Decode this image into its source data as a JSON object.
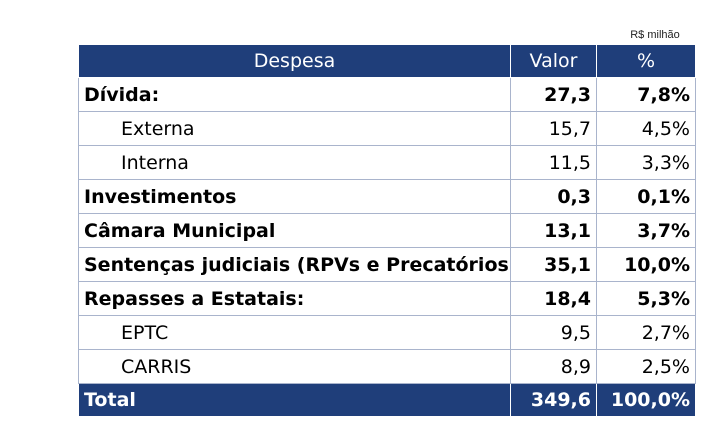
{
  "unit_label": "R$ milhão",
  "header": {
    "despesa": "Despesa",
    "valor": "Valor",
    "percent": "%"
  },
  "rows": [
    {
      "label": "Dívida:",
      "valor": "27,3",
      "percent": "7,8%"
    },
    {
      "label": "Externa",
      "valor": "15,7",
      "percent": "4,5%"
    },
    {
      "label": "Interna",
      "valor": "11,5",
      "percent": "3,3%"
    },
    {
      "label": "Investimentos",
      "valor": "0,3",
      "percent": "0,1%"
    },
    {
      "label": "Câmara Municipal",
      "valor": "13,1",
      "percent": "3,7%"
    },
    {
      "label": "Sentenças judiciais (RPVs e Precatórios)",
      "valor": "35,1",
      "percent": "10,0%"
    },
    {
      "label": "Repasses a Estatais:",
      "valor": "18,4",
      "percent": "5,3%"
    },
    {
      "label": "EPTC",
      "valor": "9,5",
      "percent": "2,7%"
    },
    {
      "label": "CARRIS",
      "valor": "8,9",
      "percent": "2,5%"
    }
  ],
  "total": {
    "label": "Total",
    "valor": "349,6",
    "percent": "100,0%"
  }
}
